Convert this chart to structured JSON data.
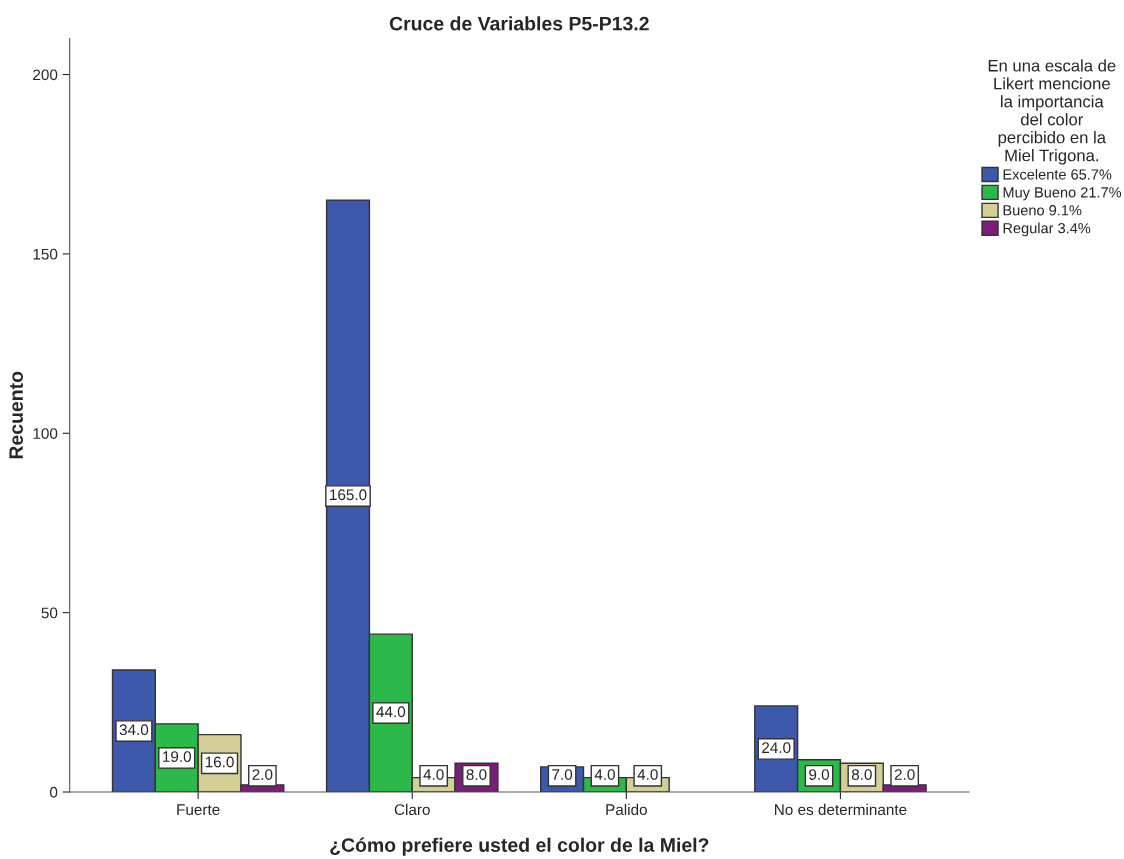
{
  "chart_data": {
    "type": "bar",
    "title": "Cruce de Variables P5-P13.2",
    "xlabel": "¿Cómo prefiere usted el color de la Miel?",
    "ylabel": "Recuento",
    "legend_title": "En una escala de Likert mencione la importancia del color percibido en la Miel Trigona.",
    "categories": [
      "Fuerte",
      "Claro",
      "Palido",
      "No es determinante"
    ],
    "series": [
      {
        "name": "Excelente 65.7%",
        "color": "#3e58ac",
        "values": [
          34,
          165,
          7,
          24
        ],
        "value_labels": [
          "34.0",
          "165.0",
          "7.0",
          "24.0"
        ]
      },
      {
        "name": "Muy Bueno 21.7%",
        "color": "#2db84a",
        "values": [
          19,
          44,
          4,
          9
        ],
        "value_labels": [
          "19.0",
          "44.0",
          "4.0",
          "9.0"
        ]
      },
      {
        "name": "Bueno 9.1%",
        "color": "#d4cf97",
        "values": [
          16,
          4,
          4,
          8
        ],
        "value_labels": [
          "16.0",
          "4.0",
          "4.0",
          "8.0"
        ]
      },
      {
        "name": "Regular 3.4%",
        "color": "#7b1e7a",
        "values": [
          2,
          8,
          null,
          2
        ],
        "value_labels": [
          "2.0",
          "8.0",
          null,
          "2.0"
        ]
      }
    ],
    "ylim": [
      0,
      210
    ],
    "yticks": [
      0,
      50,
      100,
      150,
      200
    ],
    "grid": false,
    "legend": "top right"
  }
}
